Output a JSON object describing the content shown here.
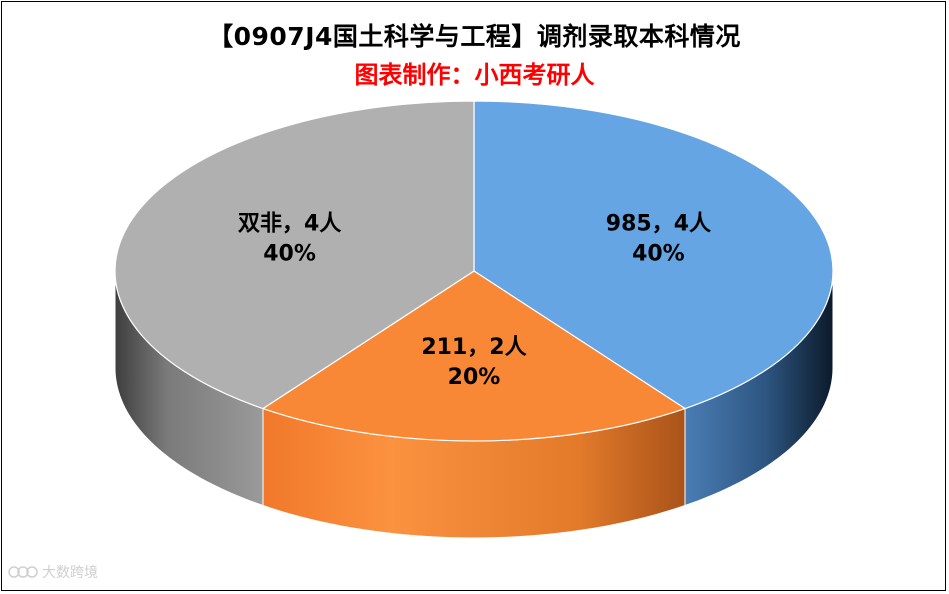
{
  "chart_data": {
    "type": "pie",
    "title": "【0907J4国土科学与工程】调剂录取本科情况",
    "subtitle": "图表制作：小西考研人",
    "slices": [
      {
        "category": "985",
        "count": 4,
        "percent": "40%",
        "label_text": "985，4人",
        "color": "#65a5e3"
      },
      {
        "category": "211",
        "count": 2,
        "percent": "20%",
        "label_text": "211，2人",
        "color": "#f98836"
      },
      {
        "category": "双非",
        "count": 4,
        "percent": "40%",
        "label_text": "双非，4人",
        "color": "#b0b0b0"
      }
    ],
    "legend": "none",
    "style": "3d"
  },
  "watermark": {
    "text": "大数跨境"
  }
}
